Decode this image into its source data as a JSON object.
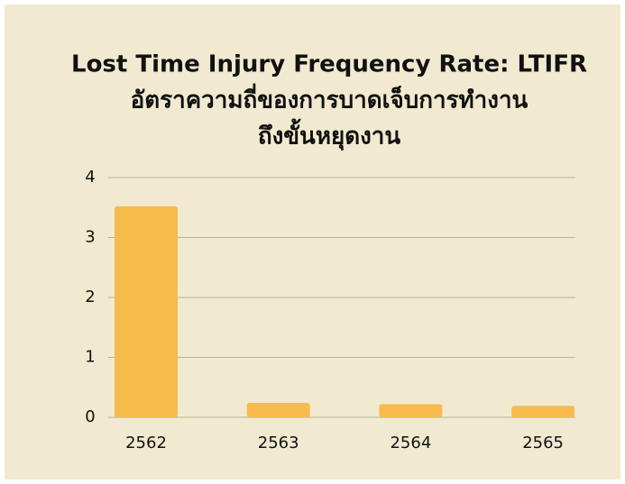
{
  "chart_data": {
    "type": "bar",
    "title": "Lost Time Injury Frequency Rate: LTIFR",
    "subtitle": [
      "อัตราความถี่ของการบาดเจ็บการทำงาน",
      "ถึงขั้นหยุดงาน"
    ],
    "categories": [
      "2562",
      "2563",
      "2564",
      "2565"
    ],
    "values": [
      3.52,
      0.24,
      0.22,
      0.19
    ],
    "color": "#f6bb4b",
    "ylim": [
      0,
      4
    ],
    "yticks": [
      0,
      1,
      2,
      3,
      4
    ],
    "grid": true
  }
}
